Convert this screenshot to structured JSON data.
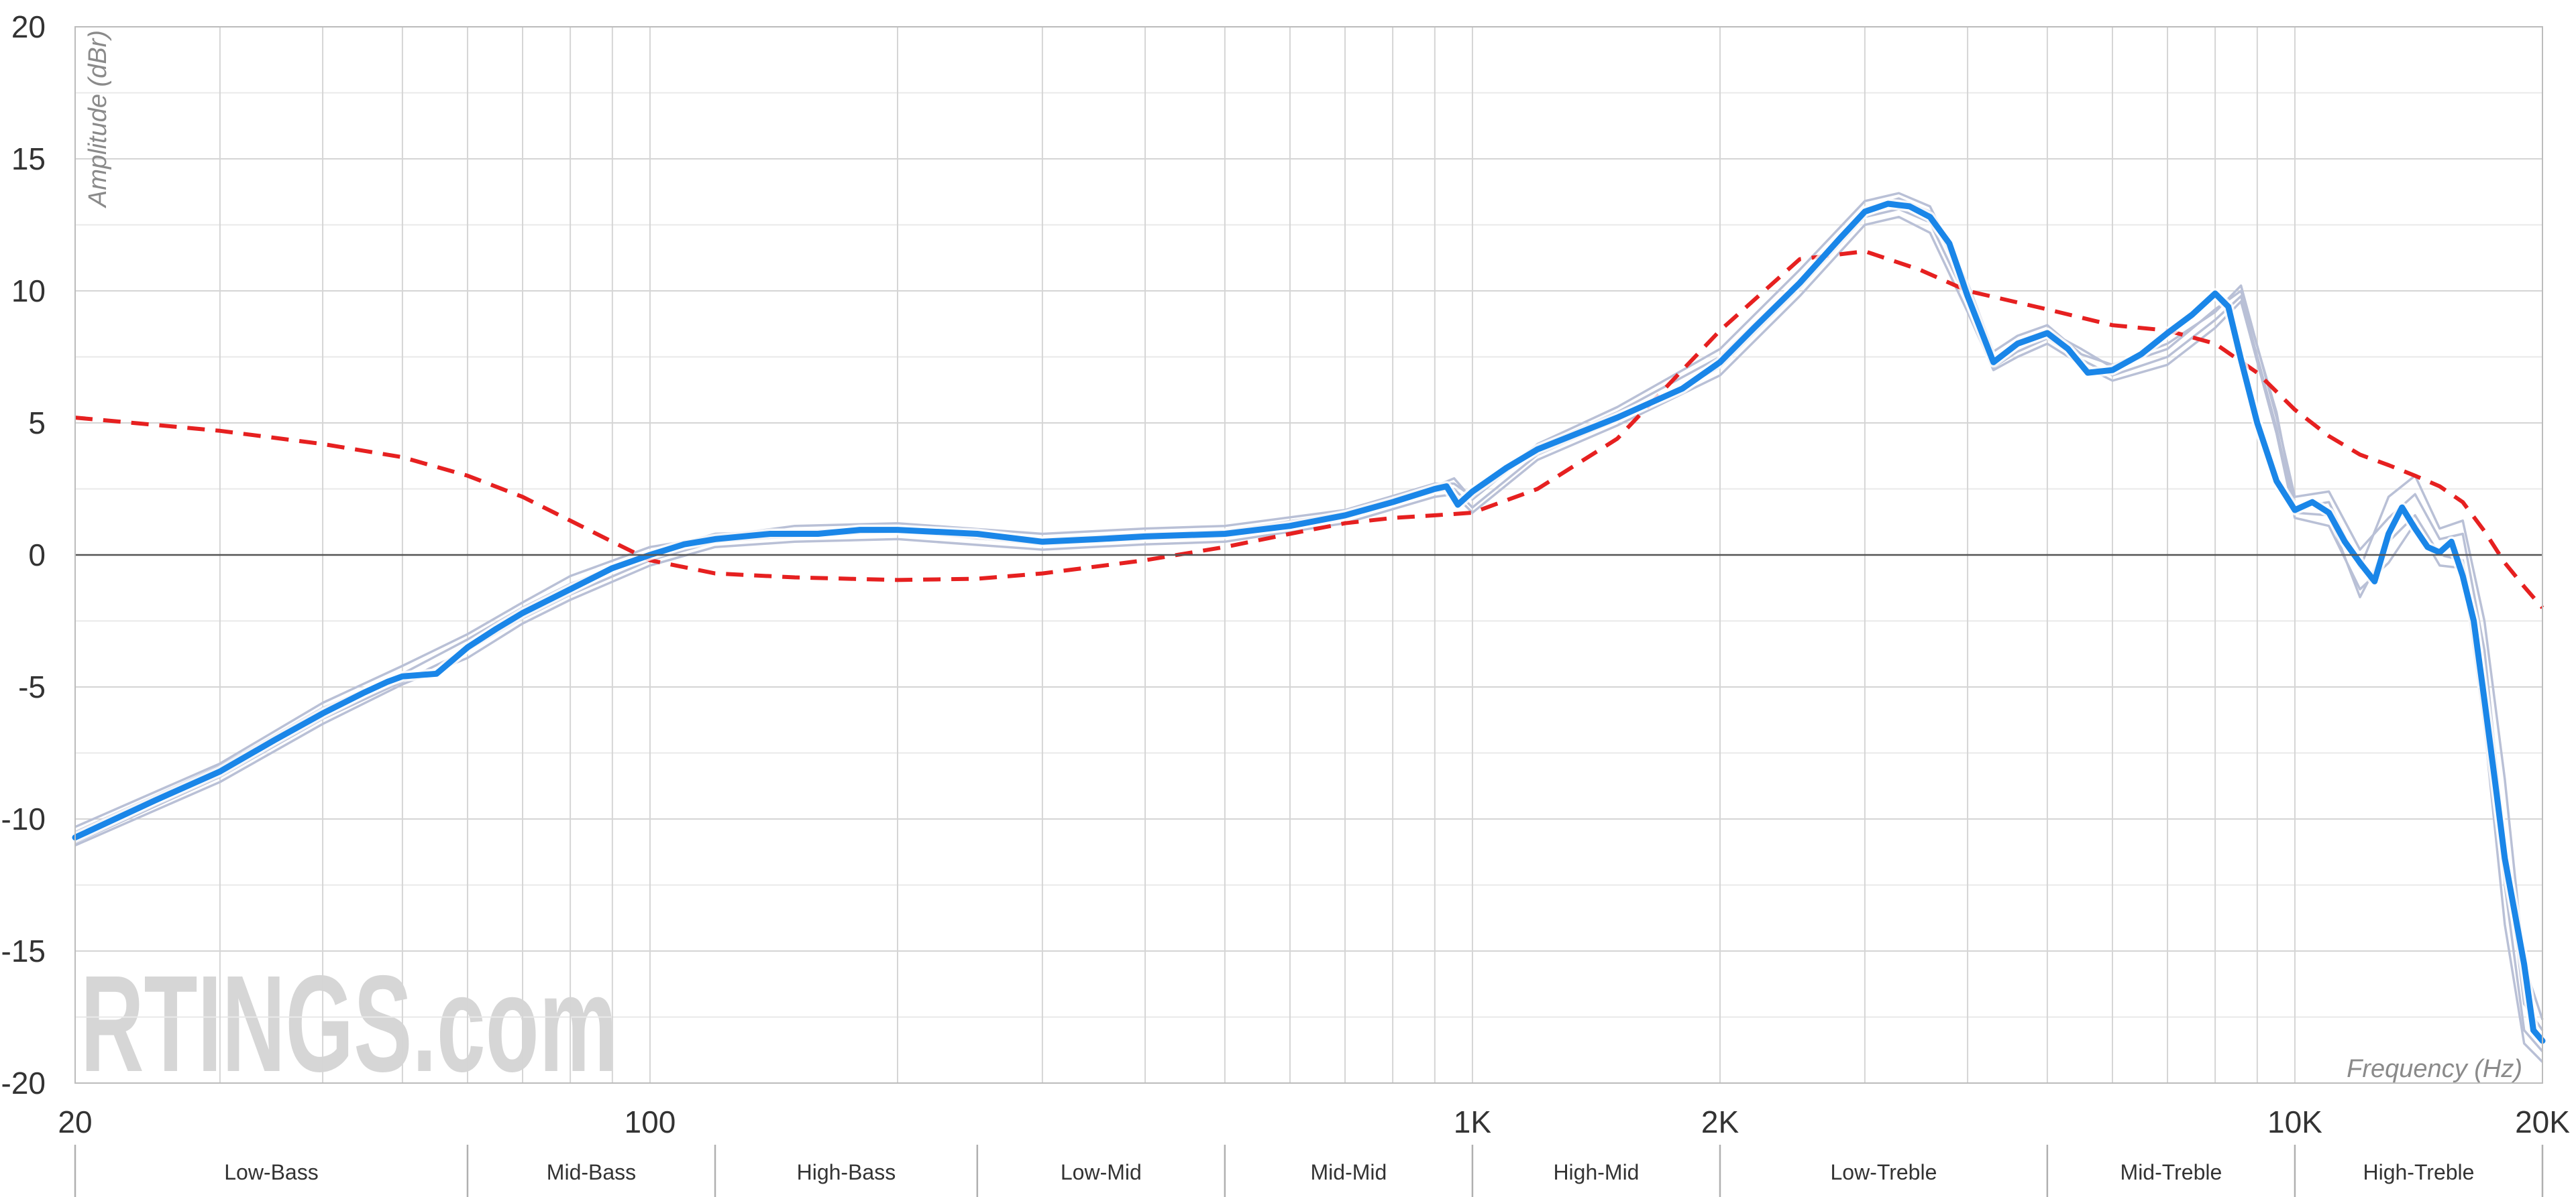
{
  "chart_data": {
    "type": "line",
    "xlabel": "Frequency (Hz)",
    "ylabel": "Amplitude (dBr)",
    "xscale": "log",
    "xlim": [
      20,
      20000
    ],
    "ylim": [
      -20,
      20
    ],
    "grid": true,
    "watermark": "RTINGS.com",
    "y_ticks": [
      {
        "value": 20,
        "label": "20"
      },
      {
        "value": 15,
        "label": "15"
      },
      {
        "value": 10,
        "label": "10"
      },
      {
        "value": 5,
        "label": "5"
      },
      {
        "value": 0,
        "label": "0"
      },
      {
        "value": -5,
        "label": "-5"
      },
      {
        "value": -10,
        "label": "-10"
      },
      {
        "value": -15,
        "label": "-15"
      },
      {
        "value": -20,
        "label": "-20"
      }
    ],
    "x_ticks": [
      {
        "value": 20,
        "label": "20"
      },
      {
        "value": 100,
        "label": "100"
      },
      {
        "value": 1000,
        "label": "1K"
      },
      {
        "value": 2000,
        "label": "2K"
      },
      {
        "value": 10000,
        "label": "10K"
      },
      {
        "value": 20000,
        "label": "20K"
      }
    ],
    "bands": [
      {
        "label": "Low-Bass",
        "from": 20,
        "to": 60
      },
      {
        "label": "Mid-Bass",
        "from": 60,
        "to": 120
      },
      {
        "label": "High-Bass",
        "from": 120,
        "to": 250
      },
      {
        "label": "Low-Mid",
        "from": 250,
        "to": 500
      },
      {
        "label": "Mid-Mid",
        "from": 500,
        "to": 1000
      },
      {
        "label": "High-Mid",
        "from": 1000,
        "to": 2000
      },
      {
        "label": "Low-Treble",
        "from": 2000,
        "to": 5000
      },
      {
        "label": "Mid-Treble",
        "from": 5000,
        "to": 10000
      },
      {
        "label": "High-Treble",
        "from": 10000,
        "to": 20000
      }
    ],
    "colors": {
      "average": "#1a86e8",
      "target": "#e62020",
      "individual": "#b9c0d6",
      "grid": "#d5d5d5",
      "zero_line": "#555555"
    },
    "series": [
      {
        "role": "target",
        "style": "dashed",
        "x": [
          20,
          30,
          40,
          50,
          60,
          70,
          80,
          90,
          100,
          120,
          150,
          200,
          250,
          300,
          400,
          500,
          600,
          700,
          800,
          900,
          1000,
          1200,
          1500,
          2000,
          2500,
          3000,
          3500,
          4000,
          5000,
          6000,
          7000,
          8000,
          9000,
          10000,
          11000,
          12000,
          13000,
          14000,
          15000,
          16000,
          17000,
          18000,
          19000,
          20000
        ],
        "y": [
          5.2,
          4.7,
          4.2,
          3.7,
          3.0,
          2.2,
          1.3,
          0.5,
          -0.2,
          -0.7,
          -0.85,
          -0.95,
          -0.9,
          -0.7,
          -0.2,
          0.3,
          0.8,
          1.2,
          1.4,
          1.5,
          1.6,
          2.5,
          4.4,
          8.5,
          11.2,
          11.5,
          10.8,
          10.0,
          9.3,
          8.7,
          8.5,
          8.0,
          6.9,
          5.5,
          4.5,
          3.8,
          3.4,
          3.0,
          2.6,
          2.0,
          0.9,
          -0.3,
          -1.2,
          -2.0
        ]
      },
      {
        "role": "average",
        "style": "solid",
        "x": [
          20,
          25,
          30,
          35,
          40,
          45,
          48,
          50,
          55,
          60,
          65,
          70,
          80,
          90,
          100,
          110,
          120,
          140,
          150,
          160,
          180,
          200,
          250,
          300,
          350,
          400,
          500,
          600,
          700,
          800,
          900,
          930,
          960,
          1000,
          1100,
          1200,
          1500,
          1800,
          2000,
          2200,
          2500,
          2800,
          3000,
          3200,
          3400,
          3600,
          3800,
          4000,
          4300,
          4600,
          5000,
          5300,
          5600,
          6000,
          6500,
          7000,
          7500,
          8000,
          8300,
          8600,
          9000,
          9500,
          10000,
          10500,
          11000,
          11500,
          12000,
          12500,
          13000,
          13500,
          14000,
          14500,
          15000,
          15500,
          16000,
          16500,
          17000,
          17500,
          18000,
          19000,
          19500,
          20000
        ],
        "y": [
          -10.7,
          -9.3,
          -8.2,
          -7.0,
          -6.0,
          -5.2,
          -4.8,
          -4.6,
          -4.5,
          -3.5,
          -2.8,
          -2.2,
          -1.3,
          -0.5,
          0.0,
          0.4,
          0.6,
          0.8,
          0.8,
          0.8,
          0.95,
          0.95,
          0.8,
          0.5,
          0.6,
          0.7,
          0.8,
          1.1,
          1.5,
          2.0,
          2.5,
          2.6,
          1.9,
          2.4,
          3.3,
          4.0,
          5.2,
          6.3,
          7.3,
          8.6,
          10.3,
          12.0,
          13.0,
          13.3,
          13.2,
          12.8,
          11.8,
          9.8,
          7.3,
          8.0,
          8.4,
          7.8,
          6.9,
          7.0,
          7.6,
          8.4,
          9.1,
          9.9,
          9.4,
          7.4,
          5.0,
          2.8,
          1.7,
          2.0,
          1.6,
          0.5,
          -0.3,
          -1.0,
          0.8,
          1.8,
          1.0,
          0.3,
          0.1,
          0.5,
          -0.8,
          -2.5,
          -5.5,
          -8.5,
          -11.5,
          -15.5,
          -18.0,
          -18.4
        ]
      },
      {
        "role": "individual",
        "style": "solid",
        "x": [
          20,
          30,
          40,
          50,
          60,
          70,
          80,
          100,
          120,
          150,
          200,
          300,
          400,
          500,
          700,
          900,
          950,
          1000,
          1200,
          1500,
          2000,
          2500,
          3000,
          3300,
          3600,
          4000,
          4300,
          4600,
          5000,
          5500,
          6000,
          7000,
          8000,
          8600,
          9500,
          10000,
          11000,
          12000,
          13000,
          14000,
          15000,
          16000,
          17000,
          18000,
          19000,
          20000
        ],
        "y": [
          -10.3,
          -7.9,
          -5.6,
          -4.2,
          -3.0,
          -1.8,
          -0.8,
          0.3,
          0.7,
          1.1,
          1.2,
          0.8,
          1.0,
          1.1,
          1.7,
          2.7,
          2.7,
          2.2,
          4.2,
          5.6,
          7.8,
          10.8,
          13.4,
          13.7,
          13.2,
          10.3,
          7.7,
          8.3,
          8.7,
          7.6,
          7.2,
          8.0,
          9.2,
          10.2,
          5.2,
          2.2,
          2.4,
          0.2,
          1.4,
          2.3,
          0.6,
          0.8,
          -3.6,
          -11.0,
          -17.0,
          -18.0
        ]
      },
      {
        "role": "individual",
        "style": "solid",
        "x": [
          20,
          30,
          40,
          50,
          60,
          70,
          80,
          100,
          120,
          150,
          200,
          300,
          400,
          500,
          700,
          900,
          950,
          1000,
          1200,
          1500,
          2000,
          2500,
          3000,
          3300,
          3600,
          4000,
          4300,
          4600,
          5000,
          5500,
          6000,
          7000,
          8000,
          8600,
          9500,
          10000,
          11000,
          12000,
          13000,
          14000,
          15000,
          16000,
          17000,
          18000,
          19000,
          20000
        ],
        "y": [
          -11.0,
          -8.6,
          -6.4,
          -4.9,
          -3.9,
          -2.6,
          -1.7,
          -0.4,
          0.3,
          0.5,
          0.6,
          0.2,
          0.4,
          0.5,
          1.2,
          2.2,
          2.3,
          1.6,
          3.6,
          4.9,
          6.8,
          9.8,
          12.5,
          12.8,
          12.2,
          9.2,
          7.0,
          7.5,
          8.0,
          7.2,
          6.6,
          7.2,
          8.6,
          9.6,
          4.6,
          1.4,
          1.1,
          -1.3,
          -0.3,
          1.2,
          -0.4,
          -0.5,
          -6.5,
          -14.0,
          -18.5,
          -19.2
        ]
      },
      {
        "role": "individual",
        "style": "solid",
        "x": [
          20,
          30,
          40,
          50,
          60,
          70,
          80,
          100,
          120,
          150,
          200,
          300,
          400,
          500,
          700,
          900,
          950,
          1000,
          1200,
          1500,
          2000,
          2500,
          3000,
          3300,
          3600,
          4000,
          4300,
          4600,
          5000,
          5500,
          6000,
          7000,
          8000,
          8600,
          9500,
          10000,
          11000,
          12000,
          13000,
          14000,
          15000,
          16000,
          17000,
          18000,
          19000,
          20000
        ],
        "y": [
          -10.5,
          -8.0,
          -5.8,
          -4.5,
          -3.2,
          -2.0,
          -1.1,
          0.1,
          0.8,
          0.9,
          1.0,
          0.6,
          0.8,
          0.9,
          1.6,
          2.6,
          2.9,
          2.1,
          4.1,
          5.4,
          7.5,
          10.4,
          13.1,
          13.5,
          13.0,
          10.0,
          7.4,
          8.1,
          8.5,
          7.8,
          7.1,
          7.8,
          9.3,
          10.0,
          5.4,
          1.8,
          2.0,
          -0.5,
          2.2,
          3.0,
          1.0,
          1.3,
          -2.5,
          -8.5,
          -15.5,
          -17.6
        ]
      },
      {
        "role": "individual",
        "style": "solid",
        "x": [
          20,
          30,
          40,
          50,
          60,
          70,
          80,
          100,
          120,
          150,
          200,
          300,
          400,
          500,
          700,
          900,
          950,
          1000,
          1200,
          1500,
          2000,
          2500,
          3000,
          3300,
          3600,
          4000,
          4300,
          4600,
          5000,
          5500,
          6000,
          7000,
          8000,
          8600,
          9500,
          10000,
          11000,
          12000,
          13000,
          14000,
          15000,
          16000,
          17000,
          18000,
          19000,
          20000
        ],
        "y": [
          -10.9,
          -8.4,
          -6.2,
          -4.8,
          -3.6,
          -2.4,
          -1.5,
          -0.2,
          0.5,
          0.7,
          0.9,
          0.4,
          0.6,
          0.7,
          1.4,
          2.4,
          2.5,
          1.8,
          3.8,
          5.1,
          7.1,
          10.1,
          12.8,
          13.1,
          12.6,
          9.6,
          7.1,
          7.7,
          8.2,
          7.4,
          6.8,
          7.5,
          8.9,
          9.8,
          4.8,
          1.6,
          1.5,
          -1.6,
          0.5,
          1.5,
          0.0,
          -0.2,
          -4.8,
          -12.5,
          -18.0,
          -18.8
        ]
      }
    ]
  }
}
